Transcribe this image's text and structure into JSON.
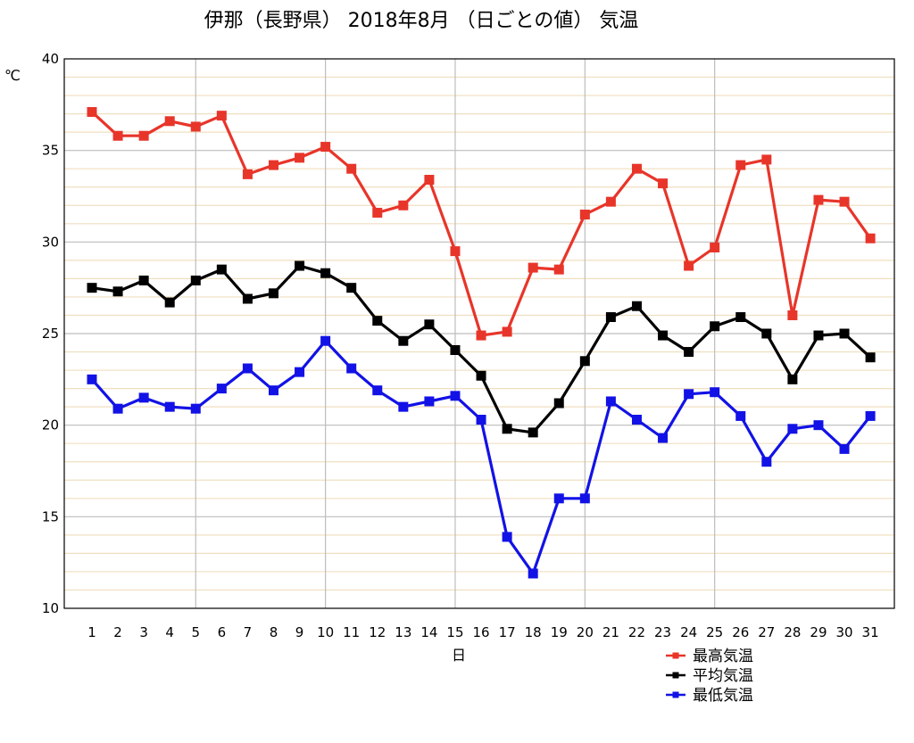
{
  "chart_data": {
    "type": "line",
    "title": "伊那（長野県） 2018年8月 （日ごとの値） 気温",
    "xlabel": "日",
    "ylabel": "℃",
    "ylim": [
      10,
      40
    ],
    "yticks": [
      10,
      15,
      20,
      25,
      30,
      35,
      40
    ],
    "x": [
      1,
      2,
      3,
      4,
      5,
      6,
      7,
      8,
      9,
      10,
      11,
      12,
      13,
      14,
      15,
      16,
      17,
      18,
      19,
      20,
      21,
      22,
      23,
      24,
      25,
      26,
      27,
      28,
      29,
      30,
      31
    ],
    "grid": true,
    "legend_position": "bottom-right",
    "series": [
      {
        "name": "最高気温",
        "color": "#e8352a",
        "values": [
          37.1,
          35.8,
          35.8,
          36.6,
          36.3,
          36.9,
          33.7,
          34.2,
          34.6,
          35.2,
          34.0,
          31.6,
          32.0,
          33.4,
          29.5,
          24.9,
          25.1,
          28.6,
          28.5,
          31.5,
          32.2,
          34.0,
          33.2,
          28.7,
          29.7,
          34.2,
          34.5,
          26.0,
          32.3,
          32.2,
          30.2
        ]
      },
      {
        "name": "平均気温",
        "color": "#000000",
        "values": [
          27.5,
          27.3,
          27.9,
          26.7,
          27.9,
          28.5,
          26.9,
          27.2,
          28.7,
          28.3,
          27.5,
          25.7,
          24.6,
          25.5,
          24.1,
          22.7,
          19.8,
          19.6,
          21.2,
          23.5,
          25.9,
          26.5,
          24.9,
          24.0,
          25.4,
          25.9,
          25.0,
          22.5,
          24.9,
          25.0,
          23.7
        ]
      },
      {
        "name": "最低気温",
        "color": "#1212e6",
        "values": [
          22.5,
          20.9,
          21.5,
          21.0,
          20.9,
          22.0,
          23.1,
          21.9,
          22.9,
          24.6,
          23.1,
          21.9,
          21.0,
          21.3,
          21.6,
          20.3,
          13.9,
          11.9,
          16.0,
          16.0,
          21.3,
          20.3,
          19.3,
          21.7,
          21.8,
          20.5,
          18.0,
          19.8,
          20.0,
          18.7,
          20.5
        ]
      }
    ]
  }
}
